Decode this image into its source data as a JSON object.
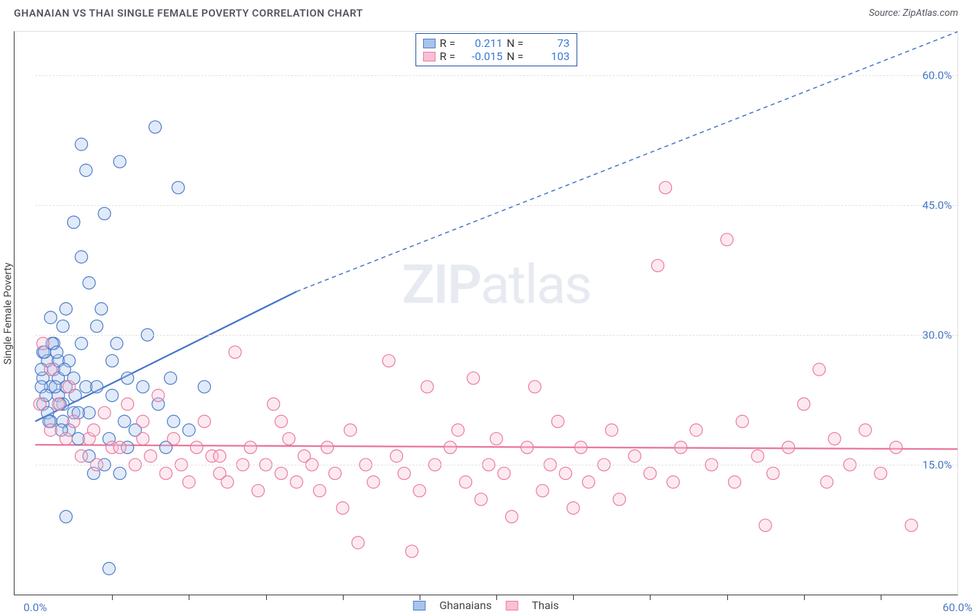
{
  "title": "GHANAIAN VS THAI SINGLE FEMALE POVERTY CORRELATION CHART",
  "source": "Source: ZipAtlas.com",
  "ylabel": "Single Female Poverty",
  "watermark_left": "ZIP",
  "watermark_right": "atlas",
  "chart": {
    "type": "scatter",
    "xlim": [
      0,
      60
    ],
    "ylim": [
      0,
      65
    ],
    "x_ticks": [
      0,
      60
    ],
    "x_tick_labels": [
      "0.0%",
      "60.0%"
    ],
    "x_minor_ticks": [
      5,
      10,
      15,
      20,
      25,
      30,
      35,
      40,
      45,
      50,
      55
    ],
    "y_ticks": [
      15,
      30,
      45,
      60
    ],
    "y_tick_labels": [
      "15.0%",
      "30.0%",
      "45.0%",
      "60.0%"
    ],
    "grid_color": "#e0e0e0",
    "background": "#ffffff",
    "marker_radius": 9,
    "marker_fill_opacity": 0.35,
    "series": [
      {
        "name": "Ghanaians",
        "color_stroke": "#4878c8",
        "color_fill": "#a8c4ec",
        "r": 0.211,
        "r_text": "0.211",
        "n": 73,
        "n_text": "73",
        "regression": {
          "x1": 0,
          "y1": 20,
          "x2_solid": 17,
          "y2_solid": 35,
          "x2_dash": 60,
          "y2_dash": 65
        },
        "points": [
          [
            0.5,
            22
          ],
          [
            0.5,
            28
          ],
          [
            0.5,
            25
          ],
          [
            0.8,
            21
          ],
          [
            0.8,
            27
          ],
          [
            1,
            24
          ],
          [
            1,
            32
          ],
          [
            1,
            20
          ],
          [
            1.2,
            26
          ],
          [
            1.2,
            29
          ],
          [
            1.5,
            23
          ],
          [
            1.5,
            27
          ],
          [
            1.5,
            25
          ],
          [
            1.8,
            20
          ],
          [
            1.8,
            31
          ],
          [
            1.8,
            22
          ],
          [
            2,
            24
          ],
          [
            2,
            33
          ],
          [
            2,
            9
          ],
          [
            2.2,
            27
          ],
          [
            2.5,
            43
          ],
          [
            2.5,
            25
          ],
          [
            2.5,
            21
          ],
          [
            2.8,
            18
          ],
          [
            3,
            39
          ],
          [
            3,
            52
          ],
          [
            3,
            29
          ],
          [
            3.3,
            49
          ],
          [
            3.3,
            24
          ],
          [
            3.5,
            36
          ],
          [
            3.5,
            21
          ],
          [
            3.5,
            16
          ],
          [
            3.8,
            14
          ],
          [
            4,
            31
          ],
          [
            4,
            24
          ],
          [
            4.3,
            33
          ],
          [
            4.5,
            15
          ],
          [
            4.5,
            44
          ],
          [
            4.8,
            3
          ],
          [
            4.8,
            18
          ],
          [
            5,
            23
          ],
          [
            5,
            27
          ],
          [
            5.3,
            29
          ],
          [
            5.5,
            50
          ],
          [
            5.5,
            14
          ],
          [
            5.8,
            20
          ],
          [
            6,
            25
          ],
          [
            6,
            17
          ],
          [
            6.5,
            19
          ],
          [
            7,
            24
          ],
          [
            7.3,
            30
          ],
          [
            7.8,
            54
          ],
          [
            8,
            22
          ],
          [
            8.5,
            17
          ],
          [
            8.8,
            25
          ],
          [
            9,
            20
          ],
          [
            9.3,
            47
          ],
          [
            10,
            19
          ],
          [
            11,
            24
          ],
          [
            2.2,
            19
          ],
          [
            0.4,
            24
          ],
          [
            0.4,
            26
          ],
          [
            0.6,
            28
          ],
          [
            0.7,
            23
          ],
          [
            0.9,
            20
          ],
          [
            1.1,
            29
          ],
          [
            1.3,
            24
          ],
          [
            1.4,
            28
          ],
          [
            1.6,
            22
          ],
          [
            1.7,
            19
          ],
          [
            1.9,
            26
          ],
          [
            2.6,
            23
          ],
          [
            2.8,
            21
          ]
        ]
      },
      {
        "name": "Thais",
        "color_stroke": "#e8789c",
        "color_fill": "#f8c0d4",
        "r": -0.015,
        "r_text": "-0.015",
        "n": 103,
        "n_text": "103",
        "regression": {
          "x1": 0,
          "y1": 17.3,
          "x2_solid": 60,
          "y2_solid": 16.8,
          "x2_dash": 60,
          "y2_dash": 16.8
        },
        "points": [
          [
            0.5,
            29
          ],
          [
            1,
            19
          ],
          [
            1.5,
            22
          ],
          [
            2,
            18
          ],
          [
            2.5,
            20
          ],
          [
            3,
            16
          ],
          [
            3.5,
            18
          ],
          [
            4,
            15
          ],
          [
            4.5,
            21
          ],
          [
            5,
            17
          ],
          [
            5.5,
            17
          ],
          [
            6,
            22
          ],
          [
            6.5,
            15
          ],
          [
            7,
            20
          ],
          [
            7.5,
            16
          ],
          [
            8,
            23
          ],
          [
            8.5,
            14
          ],
          [
            9,
            18
          ],
          [
            9.5,
            15
          ],
          [
            10,
            13
          ],
          [
            10.5,
            17
          ],
          [
            11,
            20
          ],
          [
            11.5,
            16
          ],
          [
            12,
            14
          ],
          [
            12.5,
            13
          ],
          [
            13,
            28
          ],
          [
            13.5,
            15
          ],
          [
            14,
            17
          ],
          [
            14.5,
            12
          ],
          [
            15,
            15
          ],
          [
            15.5,
            22
          ],
          [
            16,
            14
          ],
          [
            16.5,
            18
          ],
          [
            17,
            13
          ],
          [
            17.5,
            16
          ],
          [
            18,
            15
          ],
          [
            18.5,
            12
          ],
          [
            19,
            17
          ],
          [
            19.5,
            14
          ],
          [
            20,
            10
          ],
          [
            20.5,
            19
          ],
          [
            21,
            6
          ],
          [
            21.5,
            15
          ],
          [
            22,
            13
          ],
          [
            23,
            27
          ],
          [
            23.5,
            16
          ],
          [
            24,
            14
          ],
          [
            24.5,
            5
          ],
          [
            25,
            12
          ],
          [
            25.5,
            24
          ],
          [
            26,
            15
          ],
          [
            27,
            17
          ],
          [
            27.5,
            19
          ],
          [
            28,
            13
          ],
          [
            28.5,
            25
          ],
          [
            29,
            11
          ],
          [
            29.5,
            15
          ],
          [
            30,
            18
          ],
          [
            30.5,
            14
          ],
          [
            31,
            9
          ],
          [
            32,
            17
          ],
          [
            32.5,
            24
          ],
          [
            33,
            12
          ],
          [
            33.5,
            15
          ],
          [
            34,
            20
          ],
          [
            34.5,
            14
          ],
          [
            35,
            10
          ],
          [
            35.5,
            17
          ],
          [
            36,
            13
          ],
          [
            37,
            15
          ],
          [
            37.5,
            19
          ],
          [
            38,
            11
          ],
          [
            39,
            16
          ],
          [
            40,
            14
          ],
          [
            40.5,
            38
          ],
          [
            41,
            47
          ],
          [
            41.5,
            13
          ],
          [
            42,
            17
          ],
          [
            43,
            19
          ],
          [
            44,
            15
          ],
          [
            45,
            41
          ],
          [
            45.5,
            13
          ],
          [
            46,
            20
          ],
          [
            47,
            16
          ],
          [
            47.5,
            8
          ],
          [
            48,
            14
          ],
          [
            49,
            17
          ],
          [
            50,
            22
          ],
          [
            51,
            26
          ],
          [
            51.5,
            13
          ],
          [
            52,
            18
          ],
          [
            53,
            15
          ],
          [
            54,
            19
          ],
          [
            55,
            14
          ],
          [
            56,
            17
          ],
          [
            57,
            8
          ],
          [
            1,
            26
          ],
          [
            2.2,
            24
          ],
          [
            3.8,
            19
          ],
          [
            0.3,
            22
          ],
          [
            7,
            18
          ],
          [
            12,
            16
          ],
          [
            16,
            20
          ]
        ]
      }
    ]
  },
  "stats_box": {
    "rows": [
      {
        "swatch_fill": "#a8c4ec",
        "swatch_stroke": "#4878c8",
        "r_label": "R =",
        "r_val": "0.211",
        "n_label": "N =",
        "n_val": "73"
      },
      {
        "swatch_fill": "#f8c0d4",
        "swatch_stroke": "#e8789c",
        "r_label": "R =",
        "r_val": "-0.015",
        "n_label": "N =",
        "n_val": "103"
      }
    ]
  },
  "bottom_legend": [
    {
      "swatch_fill": "#a8c4ec",
      "swatch_stroke": "#4878c8",
      "label": "Ghanaians"
    },
    {
      "swatch_fill": "#f8c0d4",
      "swatch_stroke": "#e8789c",
      "label": "Thais"
    }
  ]
}
